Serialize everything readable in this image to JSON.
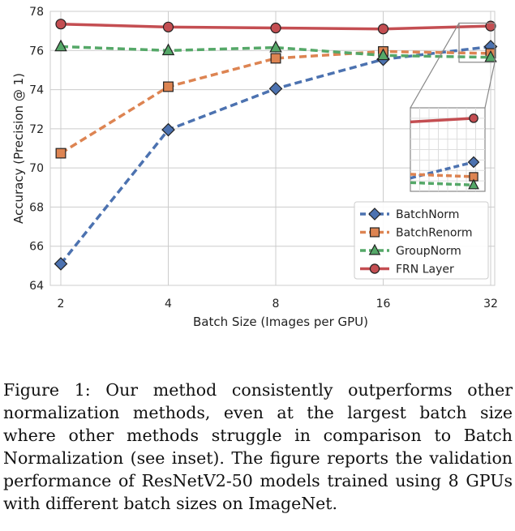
{
  "chart_data": {
    "type": "line",
    "title": "",
    "xlabel": "Batch Size (Images per GPU)",
    "ylabel": "Accuracy (Precision @ 1)",
    "categories": [
      "2",
      "4",
      "8",
      "16",
      "32"
    ],
    "ylim": [
      64,
      78
    ],
    "yticks": [
      "64",
      "66",
      "68",
      "70",
      "72",
      "74",
      "76",
      "78"
    ],
    "grid": true,
    "legend_position": "lower-right",
    "series": [
      {
        "name": "BatchNorm",
        "marker": "diamond",
        "dash": "dashed",
        "color": "#4C72B0",
        "values": [
          65.1,
          71.95,
          74.05,
          75.55,
          76.2
        ]
      },
      {
        "name": "BatchRenorm",
        "marker": "square",
        "dash": "dashed",
        "color": "#DD8452",
        "values": [
          70.75,
          74.15,
          75.6,
          75.95,
          75.85
        ]
      },
      {
        "name": "GroupNorm",
        "marker": "triangle",
        "dash": "dashed",
        "color": "#55A868",
        "values": [
          76.2,
          76.0,
          76.15,
          75.75,
          75.65
        ]
      },
      {
        "name": "FRN Layer",
        "marker": "circle",
        "dash": "solid",
        "color": "#C44E52",
        "values": [
          77.35,
          77.2,
          77.15,
          77.1,
          77.25
        ]
      }
    ],
    "inset": {
      "description": "zoom of batch size 32 region",
      "x_range": [
        "16",
        "32"
      ],
      "ylim": [
        75.5,
        77.5
      ]
    }
  },
  "caption": "Figure 1: Our method consistently outperforms other normalization methods, even at the largest batch size where other methods struggle in comparison to Batch Normalization (see inset). The figure reports the validation performance of ResNetV2-50 models trained using 8 GPUs with different batch sizes on ImageNet."
}
